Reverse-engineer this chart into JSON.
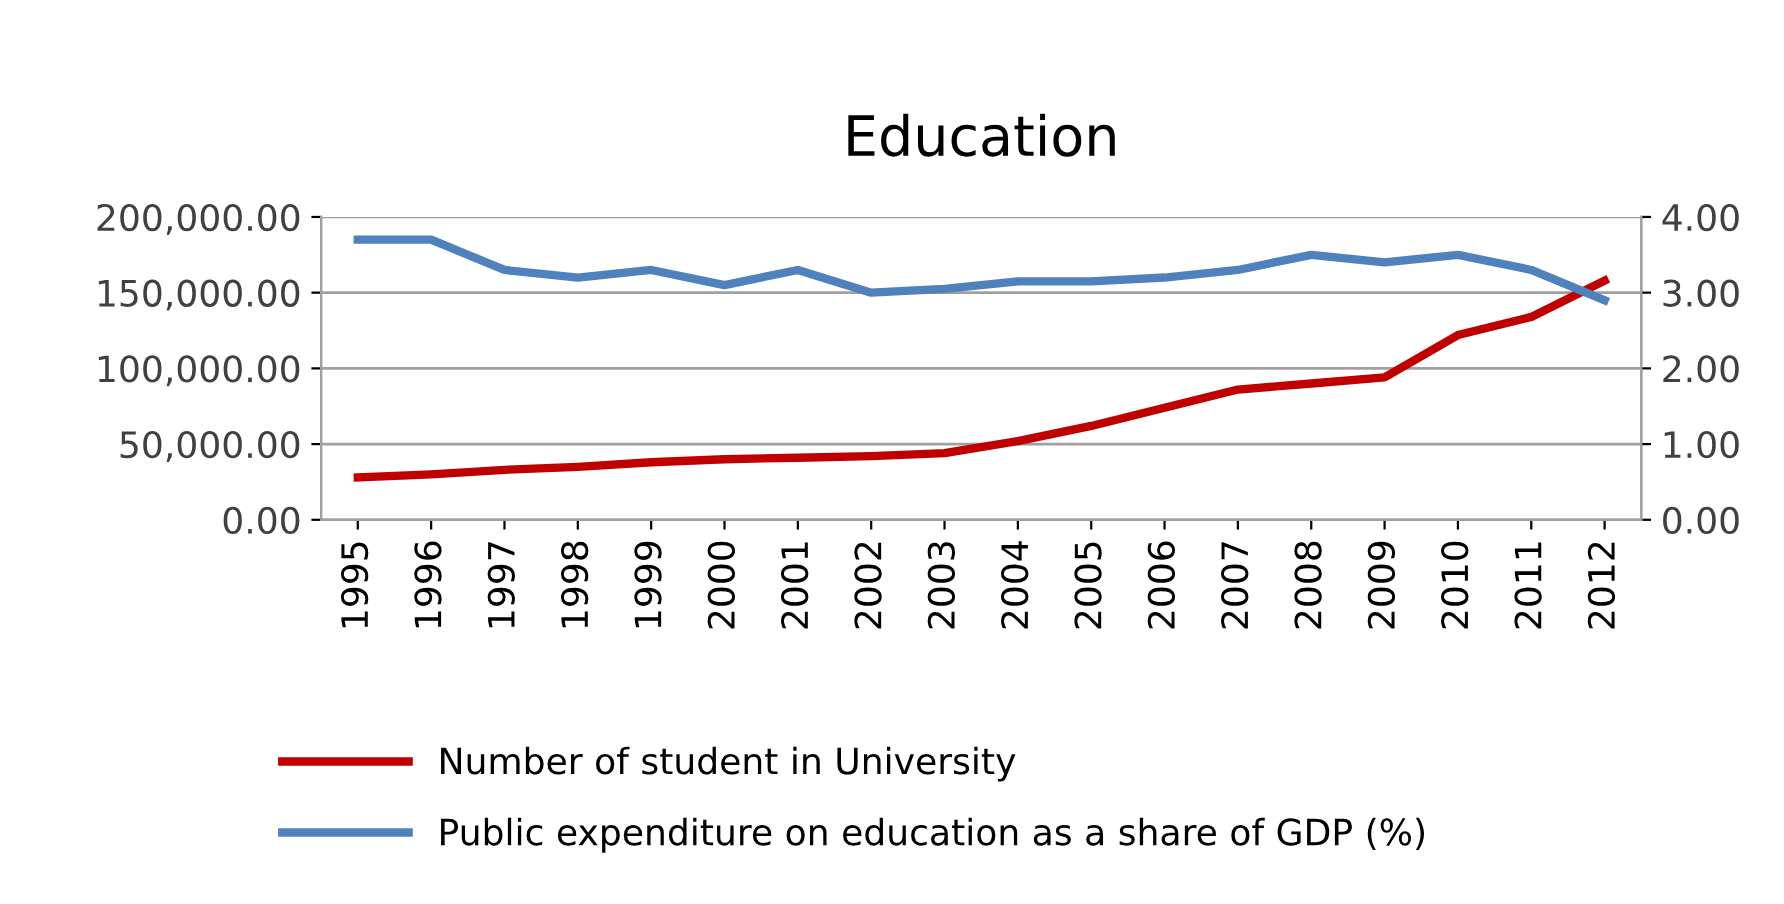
{
  "chart_data": {
    "type": "line",
    "title": "Education",
    "categories": [
      "1995",
      "1996",
      "1997",
      "1998",
      "1999",
      "2000",
      "2001",
      "2002",
      "2003",
      "2004",
      "2005",
      "2006",
      "2007",
      "2008",
      "2009",
      "2010",
      "2011",
      "2012"
    ],
    "series": [
      {
        "name": "Number of student in University",
        "color": "#c00000",
        "values": [
          28000,
          30000,
          33000,
          35000,
          38000,
          40000,
          41000,
          42000,
          44000,
          52000,
          62000,
          74000,
          86000,
          90000,
          94000,
          122000,
          134000,
          158000
        ]
      },
      {
        "name": "Public expenditure on education as a share of GDP (%)",
        "color": "#4f81bd",
        "axis": "y2",
        "values": [
          3.7,
          3.7,
          3.3,
          3.2,
          3.3,
          3.1,
          3.3,
          3.0,
          3.05,
          3.15,
          3.15,
          3.2,
          3.3,
          3.5,
          3.4,
          3.5,
          3.3,
          2.9
        ]
      }
    ],
    "ylim": [
      0,
      200000
    ],
    "yticks": [
      {
        "value": 0,
        "label": "0.00"
      },
      {
        "value": 50000,
        "label": "50,000.00"
      },
      {
        "value": 100000,
        "label": "100,000.00"
      },
      {
        "value": 150000,
        "label": "150,000.00"
      },
      {
        "value": 200000,
        "label": "200,000.00"
      }
    ],
    "y2lim": [
      0,
      4
    ],
    "y2ticks": [
      {
        "value": 0,
        "label": "0.00"
      },
      {
        "value": 1,
        "label": "1.00"
      },
      {
        "value": 2,
        "label": "2.00"
      },
      {
        "value": 3,
        "label": "3.00"
      },
      {
        "value": 4,
        "label": "4.00"
      }
    ],
    "grid": "y",
    "legend": "bottom",
    "marker": "none",
    "line_style": "solid"
  }
}
